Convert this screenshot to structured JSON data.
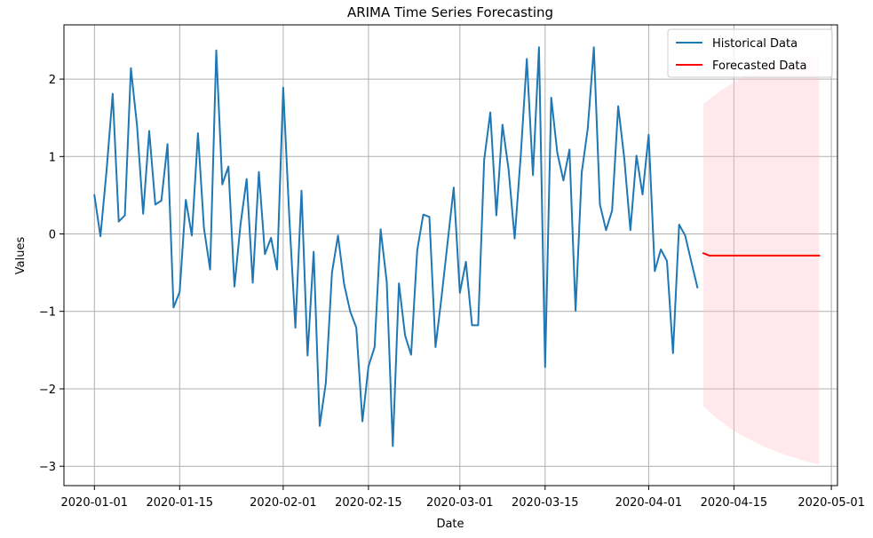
{
  "chart_data": {
    "type": "line",
    "title": "ARIMA Time Series Forecasting",
    "xlabel": "Date",
    "ylabel": "Values",
    "xlim": [
      "2019-12-27",
      "2020-05-02"
    ],
    "ylim": [
      -3.25,
      2.7
    ],
    "x_ticks": [
      "2020-01-01",
      "2020-01-15",
      "2020-02-01",
      "2020-02-15",
      "2020-03-01",
      "2020-03-15",
      "2020-04-01",
      "2020-04-15",
      "2020-05-01"
    ],
    "y_ticks": [
      -3,
      -2,
      -1,
      0,
      1,
      2
    ],
    "y_tick_labels": [
      "−3",
      "−2",
      "−1",
      "0",
      "1",
      "2"
    ],
    "grid": true,
    "legend_position": "top-right",
    "series": [
      {
        "name": "Historical Data",
        "color": "#1f77b4",
        "start_date": "2020-01-01",
        "step_days": 1,
        "values": [
          0.5,
          -0.03,
          0.82,
          1.81,
          0.16,
          0.24,
          2.14,
          1.4,
          0.26,
          1.33,
          0.38,
          0.43,
          1.16,
          -0.95,
          -0.75,
          0.44,
          -0.02,
          1.3,
          0.07,
          -0.46,
          2.37,
          0.64,
          0.87,
          -0.68,
          0.13,
          0.71,
          -0.63,
          0.8,
          -0.26,
          -0.05,
          -0.46,
          1.89,
          0.2,
          -1.21,
          0.56,
          -1.57,
          -0.23,
          -2.48,
          -1.92,
          -0.5,
          -0.02,
          -0.65,
          -1.0,
          -1.21,
          -2.42,
          -1.71,
          -1.46,
          0.06,
          -0.62,
          -2.74,
          -0.64,
          -1.31,
          -1.56,
          -0.21,
          0.25,
          0.22,
          -1.46,
          -0.81,
          -0.1,
          0.6,
          -0.76,
          -0.36,
          -1.18,
          -1.18,
          0.96,
          1.57,
          0.24,
          1.41,
          0.83,
          -0.06,
          1.02,
          2.26,
          0.76,
          2.41,
          -1.72,
          1.76,
          1.05,
          0.69,
          1.09,
          -0.99,
          0.79,
          1.36,
          2.41,
          0.38,
          0.05,
          0.3,
          1.65,
          0.97,
          0.05,
          1.01,
          0.51,
          1.28,
          -0.48,
          -0.2,
          -0.35,
          -1.54,
          0.12,
          -0.02,
          -0.36,
          -0.69
        ]
      },
      {
        "name": "Forecasted Data",
        "color": "#ff0000",
        "start_date": "2020-04-10",
        "step_days": 1,
        "values": [
          -0.25,
          -0.28,
          -0.28,
          -0.28,
          -0.28,
          -0.28,
          -0.28,
          -0.28,
          -0.28,
          -0.28,
          -0.28,
          -0.28,
          -0.28,
          -0.28,
          -0.28,
          -0.28,
          -0.28,
          -0.28,
          -0.28,
          -0.28
        ],
        "confidence_band": {
          "color": "#ffc0cb",
          "upper": [
            1.68,
            1.74,
            1.8,
            1.86,
            1.91,
            1.96,
            2.0,
            2.04,
            2.07,
            2.1,
            2.13,
            2.16,
            2.18,
            2.2,
            2.22,
            2.24,
            2.26,
            2.28,
            2.3,
            2.31
          ],
          "lower": [
            -2.22,
            -2.3,
            -2.37,
            -2.43,
            -2.49,
            -2.54,
            -2.59,
            -2.63,
            -2.67,
            -2.71,
            -2.75,
            -2.78,
            -2.81,
            -2.84,
            -2.87,
            -2.89,
            -2.92,
            -2.94,
            -2.96,
            -2.98
          ]
        }
      }
    ]
  }
}
